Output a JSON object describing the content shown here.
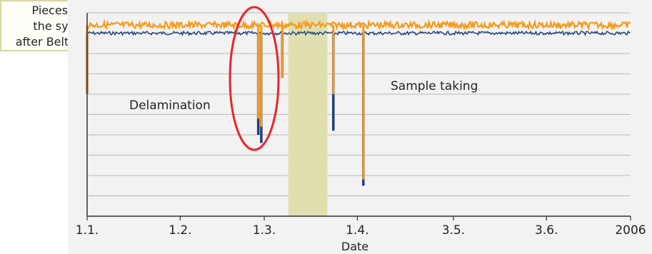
{
  "chart_data": {
    "type": "line",
    "title": "",
    "xlabel": "Date",
    "ylabel": "",
    "x_ticks": [
      "1.1.",
      "1.2.",
      "1.3.",
      "1.4.",
      "3.5.",
      "3.6.",
      "2006"
    ],
    "ylim": [
      0,
      100
    ],
    "grid": true,
    "series": [
      {
        "color": "#1f3f7a",
        "baseline": 90,
        "drops": [
          {
            "x": "1.1.",
            "value": 60
          },
          {
            "x": "27.2.",
            "value": 40
          },
          {
            "x": "28.2.",
            "value": 36
          },
          {
            "x": "7.3.",
            "value": 68
          },
          {
            "x": "10.3.",
            "value": 90
          },
          {
            "x": "24.3.",
            "value": 42
          },
          {
            "x": "3.4.",
            "value": 15
          }
        ]
      },
      {
        "color": "#f59b1c",
        "baseline": 94,
        "drops": [
          {
            "x": "1.1.",
            "value": 60
          },
          {
            "x": "27.2.",
            "value": 48
          },
          {
            "x": "28.2.",
            "value": 44
          },
          {
            "x": "7.3.",
            "value": 68
          },
          {
            "x": "24.3.",
            "value": 60
          },
          {
            "x": "3.4.",
            "value": 18
          }
        ]
      }
    ],
    "annotations": {
      "delamination": "Delamination",
      "sample_taking": "Sample taking",
      "pieces_from_system": [
        "Pieces from",
        "the system",
        "after Belt change"
      ]
    },
    "highlights": [
      {
        "type": "ellipse",
        "color": "#e8262c",
        "label": "Delamination"
      },
      {
        "type": "band",
        "color": "#e0dfb0",
        "range": [
          "9.3.",
          "22.3."
        ]
      }
    ]
  }
}
